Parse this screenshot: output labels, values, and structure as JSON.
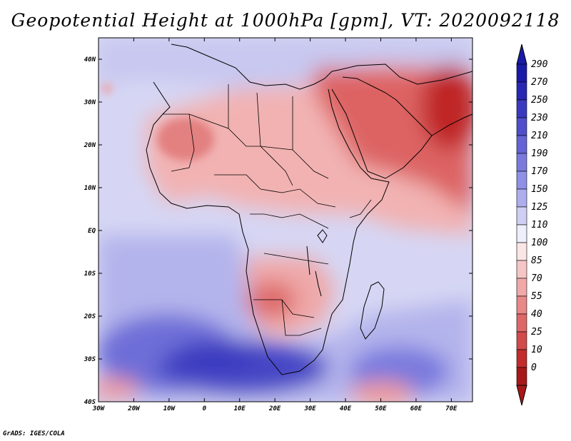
{
  "title": "Geopotential Height at 1000hPa [gpm], VT: 2020092118",
  "footer": "GrADS: IGES/COLA",
  "map": {
    "lon_range": [
      -30,
      76
    ],
    "lat_range": [
      -40,
      45
    ],
    "lon_ticks": [
      {
        "v": -30,
        "label": "30W"
      },
      {
        "v": -20,
        "label": "20W"
      },
      {
        "v": -10,
        "label": "10W"
      },
      {
        "v": 0,
        "label": "0"
      },
      {
        "v": 10,
        "label": "10E"
      },
      {
        "v": 20,
        "label": "20E"
      },
      {
        "v": 30,
        "label": "30E"
      },
      {
        "v": 40,
        "label": "40E"
      },
      {
        "v": 50,
        "label": "50E"
      },
      {
        "v": 60,
        "label": "60E"
      },
      {
        "v": 70,
        "label": "70E"
      }
    ],
    "lat_ticks": [
      {
        "v": 40,
        "label": "40N"
      },
      {
        "v": 30,
        "label": "30N"
      },
      {
        "v": 20,
        "label": "20N"
      },
      {
        "v": 10,
        "label": "10N"
      },
      {
        "v": 0,
        "label": "EQ"
      },
      {
        "v": -10,
        "label": "10S"
      },
      {
        "v": -20,
        "label": "20S"
      },
      {
        "v": -30,
        "label": "30S"
      },
      {
        "v": -40,
        "label": "40S"
      }
    ]
  },
  "colorbar": {
    "levels": [
      "290",
      "270",
      "250",
      "230",
      "210",
      "190",
      "170",
      "150",
      "125",
      "110",
      "100",
      "85",
      "70",
      "55",
      "40",
      "25",
      "10",
      "0"
    ],
    "colors": [
      "#1a1aa8",
      "#2727b4",
      "#3a3ac0",
      "#4f4fcc",
      "#6464d6",
      "#7a7ade",
      "#9090e6",
      "#aeaeef",
      "#cfcff6",
      "#eeeefc",
      "#fbe6e6",
      "#f6c6c6",
      "#f0a8a8",
      "#e88888",
      "#de6868",
      "#d24a4a",
      "#c22c2c",
      "#a81818"
    ]
  }
}
